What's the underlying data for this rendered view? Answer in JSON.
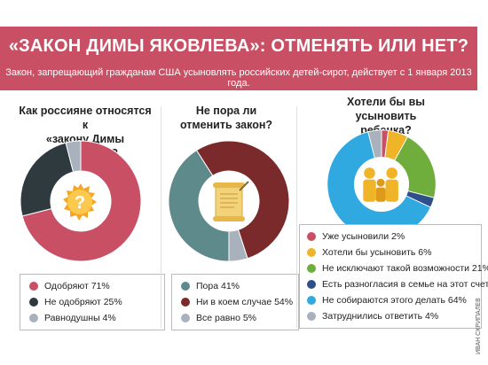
{
  "banner": {
    "title": "«ЗАКОН ДИМЫ ЯКОВЛЕВА»: ОТМЕНЯТЬ ИЛИ НЕТ?",
    "subtitle": "Закон, запрещающий гражданам США усыновлять российских детей-сирот, действует с 1 января 2013 года.",
    "color": "#c84f64"
  },
  "icons": [
    "question-mark-icon",
    "scroll-law-icon",
    "family-figures-icon"
  ],
  "credit": "ИВАН СКРИПАЛЕВ",
  "chart_data": [
    {
      "type": "pie",
      "title": [
        "Как россияне относятся к",
        "«закону Димы Яковлева»?"
      ],
      "slices": [
        {
          "label": "Одобряют 71%",
          "value": 71,
          "color": "#c84f64"
        },
        {
          "label": "Не одобряют 25%",
          "value": 25,
          "color": "#2e3a3e"
        },
        {
          "label": "Равнодушны 4%",
          "value": 4,
          "color": "#a9b2bc"
        }
      ]
    },
    {
      "type": "pie",
      "title": [
        "Не пора ли",
        "отменить закон?"
      ],
      "slices": [
        {
          "label": "Пора 41%",
          "value": 41,
          "color": "#5f8a8c"
        },
        {
          "label": "Ни в коем случае 54%",
          "value": 54,
          "color": "#7a2a2a"
        },
        {
          "label": "Все равно 5%",
          "value": 5,
          "color": "#a9b2bc"
        }
      ]
    },
    {
      "type": "pie",
      "title": [
        "Хотели бы вы усыновить",
        "ребенка?"
      ],
      "slices": [
        {
          "label": "Уже усыновили 2%",
          "value": 2,
          "color": "#c84f64"
        },
        {
          "label": "Хотели бы усыновить 6%",
          "value": 6,
          "color": "#f0b429"
        },
        {
          "label": "Не исключают такой возможности 21%",
          "value": 21,
          "color": "#6fae3d"
        },
        {
          "label": "Есть разногласия в семье на этот счет 3%",
          "value": 3,
          "color": "#2f4f8a"
        },
        {
          "label": "Не собираются этого делать 64%",
          "value": 64,
          "color": "#2fa9e0"
        },
        {
          "label": "Затруднились ответить 4%",
          "value": 4,
          "color": "#a9b2bc"
        }
      ]
    }
  ]
}
